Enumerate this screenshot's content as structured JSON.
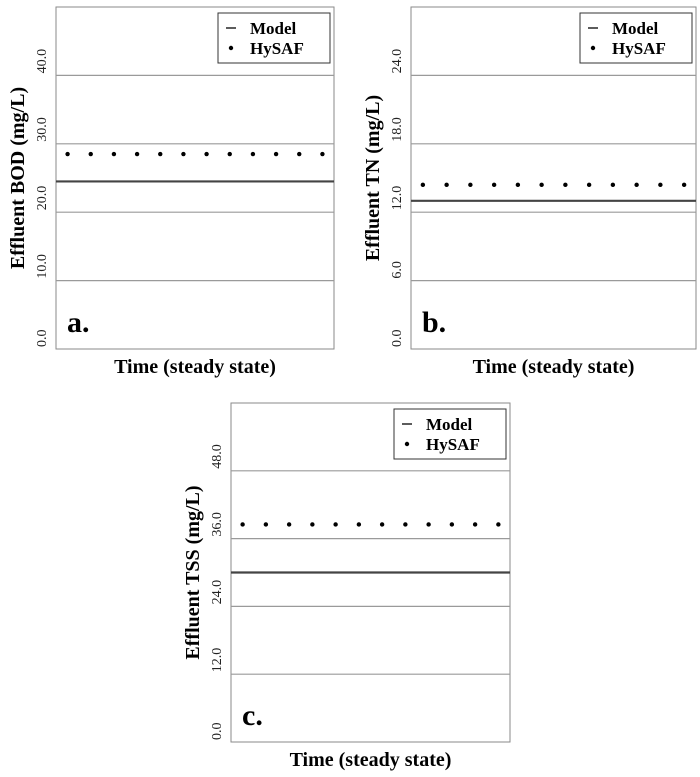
{
  "chart_data": [
    {
      "type": "line",
      "panel_label": "a.",
      "xlabel": "Time (steady state)",
      "ylabel": "Effluent BOD (mg/L)",
      "ylim": [
        0,
        50
      ],
      "yticks": [
        0,
        10,
        20,
        30,
        40
      ],
      "ytick_labels": [
        "0.0",
        "10.0",
        "20.0",
        "30.0",
        "40.0"
      ],
      "grid": true,
      "legend_position": "top-right",
      "series": [
        {
          "name": "Model",
          "style": "solid-line",
          "values": [
            24.5,
            24.5,
            24.5,
            24.5,
            24.5,
            24.5,
            24.5,
            24.5,
            24.5,
            24.5,
            24.5,
            24.5
          ]
        },
        {
          "name": "HySAF",
          "style": "dots",
          "values": [
            28.5,
            28.5,
            28.5,
            28.5,
            28.5,
            28.5,
            28.5,
            28.5,
            28.5,
            28.5,
            28.5,
            28.5
          ]
        }
      ]
    },
    {
      "type": "line",
      "panel_label": "b.",
      "xlabel": "Time (steady state)",
      "ylabel": "Effluent TN (mg/L)",
      "ylim": [
        0,
        30
      ],
      "yticks": [
        0,
        6,
        12,
        18,
        24
      ],
      "ytick_labels": [
        "0.0",
        "6.0",
        "12.0",
        "18.0",
        "24.0"
      ],
      "grid": true,
      "legend_position": "top-right",
      "series": [
        {
          "name": "Model",
          "style": "solid-line",
          "values": [
            13.0,
            13.0,
            13.0,
            13.0,
            13.0,
            13.0,
            13.0,
            13.0,
            13.0,
            13.0,
            13.0,
            13.0
          ]
        },
        {
          "name": "HySAF",
          "style": "dots",
          "values": [
            14.4,
            14.4,
            14.4,
            14.4,
            14.4,
            14.4,
            14.4,
            14.4,
            14.4,
            14.4,
            14.4,
            14.4
          ]
        }
      ]
    },
    {
      "type": "line",
      "panel_label": "c.",
      "xlabel": "Time (steady state)",
      "ylabel": "Effluent TSS (mg/L)",
      "ylim": [
        0,
        60
      ],
      "yticks": [
        0,
        12,
        24,
        36,
        48
      ],
      "ytick_labels": [
        "0.0",
        "12.0",
        "24.0",
        "36.0",
        "48.0"
      ],
      "grid": true,
      "legend_position": "top-right",
      "series": [
        {
          "name": "Model",
          "style": "solid-line",
          "values": [
            30.0,
            30.0,
            30.0,
            30.0,
            30.0,
            30.0,
            30.0,
            30.0,
            30.0,
            30.0,
            30.0,
            30.0
          ]
        },
        {
          "name": "HySAF",
          "style": "dots",
          "values": [
            38.5,
            38.5,
            38.5,
            38.5,
            38.5,
            38.5,
            38.5,
            38.5,
            38.5,
            38.5,
            38.5,
            38.5
          ]
        }
      ]
    }
  ]
}
